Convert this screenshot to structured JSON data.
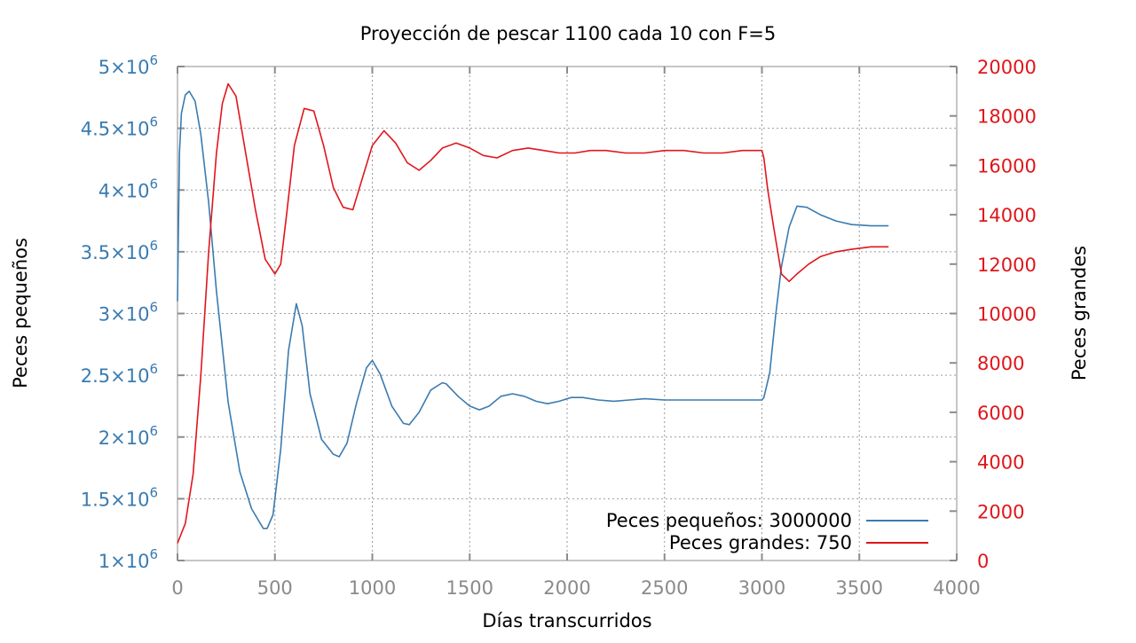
{
  "chart_data": {
    "type": "line",
    "title": "Proyección de pescar 1100 cada 10 con F=5",
    "xlabel": "Días transcurridos",
    "ylabel_left": "Peces pequeños",
    "ylabel_right": "Peces grandes",
    "xlim": [
      0,
      4000
    ],
    "ylim_left": [
      1000000,
      5000000
    ],
    "ylim_right": [
      0,
      20000
    ],
    "x_ticks": [
      "0",
      "500",
      "1000",
      "1500",
      "2000",
      "2500",
      "3000",
      "3500",
      "4000"
    ],
    "y_left_ticks": [
      {
        "mant": "1",
        "exp": "6"
      },
      {
        "mant": "1.5",
        "exp": "6"
      },
      {
        "mant": "2",
        "exp": "6"
      },
      {
        "mant": "2.5",
        "exp": "6"
      },
      {
        "mant": "3",
        "exp": "6"
      },
      {
        "mant": "3.5",
        "exp": "6"
      },
      {
        "mant": "4",
        "exp": "6"
      },
      {
        "mant": "4.5",
        "exp": "6"
      },
      {
        "mant": "5",
        "exp": "6"
      }
    ],
    "y_right_ticks": [
      "0",
      "2000",
      "4000",
      "6000",
      "8000",
      "10000",
      "12000",
      "14000",
      "16000",
      "18000",
      "20000"
    ],
    "grid": true,
    "legend_position": "bottom-right",
    "series": [
      {
        "name": "Peces pequeños: 3000000",
        "axis": "left",
        "color": "#3a7bb0",
        "x": [
          0,
          3,
          10,
          20,
          40,
          60,
          90,
          120,
          160,
          200,
          260,
          320,
          380,
          440,
          460,
          490,
          530,
          570,
          610,
          640,
          680,
          740,
          800,
          830,
          870,
          920,
          970,
          1000,
          1040,
          1100,
          1160,
          1190,
          1240,
          1300,
          1360,
          1380,
          1440,
          1500,
          1550,
          1600,
          1660,
          1720,
          1780,
          1840,
          1900,
          1960,
          2020,
          2080,
          2160,
          2240,
          2320,
          2400,
          2500,
          2600,
          2700,
          2800,
          2900,
          3000,
          3010,
          3040,
          3070,
          3100,
          3140,
          3180,
          3230,
          3300,
          3380,
          3460,
          3560,
          3650
        ],
        "y": [
          3100000,
          3500000,
          4300000,
          4620000,
          4770000,
          4800000,
          4720000,
          4450000,
          3900000,
          3180000,
          2280000,
          1720000,
          1420000,
          1260000,
          1260000,
          1370000,
          1900000,
          2700000,
          3080000,
          2900000,
          2350000,
          1980000,
          1860000,
          1840000,
          1950000,
          2280000,
          2560000,
          2620000,
          2510000,
          2250000,
          2110000,
          2100000,
          2200000,
          2380000,
          2440000,
          2430000,
          2330000,
          2250000,
          2220000,
          2250000,
          2330000,
          2350000,
          2330000,
          2290000,
          2270000,
          2290000,
          2320000,
          2320000,
          2300000,
          2290000,
          2300000,
          2310000,
          2300000,
          2300000,
          2300000,
          2300000,
          2300000,
          2300000,
          2320000,
          2520000,
          2980000,
          3380000,
          3700000,
          3870000,
          3860000,
          3800000,
          3750000,
          3720000,
          3710000,
          3710000
        ]
      },
      {
        "name": "Peces grandes: 750",
        "axis": "right",
        "color": "#e0161b",
        "x": [
          0,
          40,
          80,
          120,
          160,
          200,
          230,
          260,
          300,
          350,
          400,
          450,
          500,
          530,
          560,
          600,
          650,
          700,
          750,
          800,
          850,
          900,
          950,
          1000,
          1060,
          1120,
          1180,
          1240,
          1300,
          1360,
          1430,
          1500,
          1570,
          1640,
          1720,
          1800,
          1880,
          1960,
          2040,
          2120,
          2200,
          2300,
          2400,
          2500,
          2600,
          2700,
          2800,
          2900,
          3000,
          3010,
          3030,
          3060,
          3100,
          3140,
          3180,
          3240,
          3300,
          3380,
          3460,
          3560,
          3650
        ],
        "y": [
          700,
          1500,
          3500,
          7500,
          12500,
          16500,
          18500,
          19300,
          18800,
          16500,
          14200,
          12200,
          11600,
          12000,
          14000,
          16800,
          18300,
          18200,
          16800,
          15100,
          14300,
          14200,
          15500,
          16800,
          17400,
          16900,
          16100,
          15800,
          16200,
          16700,
          16900,
          16700,
          16400,
          16300,
          16600,
          16700,
          16600,
          16500,
          16500,
          16600,
          16600,
          16500,
          16500,
          16600,
          16600,
          16500,
          16500,
          16600,
          16600,
          16300,
          15000,
          13500,
          11600,
          11300,
          11600,
          12000,
          12300,
          12500,
          12600,
          12700,
          12700
        ]
      }
    ]
  }
}
